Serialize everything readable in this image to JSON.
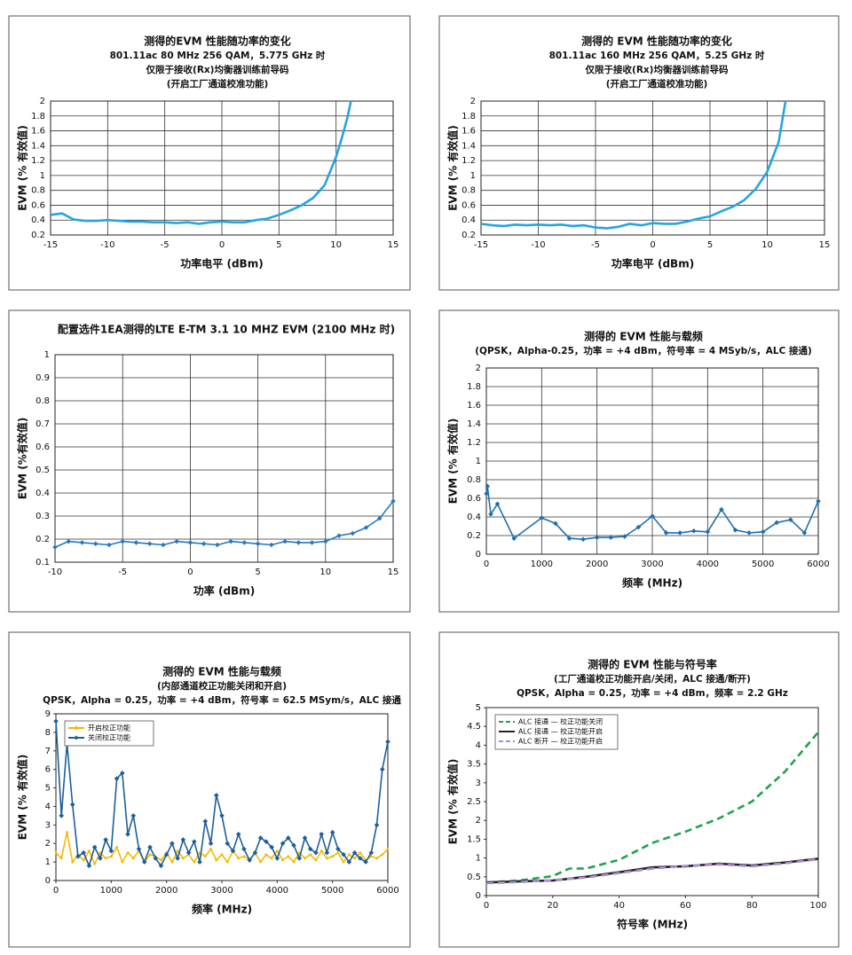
{
  "chart_data": [
    {
      "type": "line",
      "title": [
        "测得的EVM 性能随功率的变化",
        "801.11ac 80 MHz 256 QAM，5.775 GHz 时",
        "仅限于接收(Rx)均衡器训练前导码",
        "(开启工厂通道校准功能)"
      ],
      "xlabel": "功率电平 (dBm)",
      "ylabel": "EVM (% 有效值)",
      "xlim": [
        -15,
        15
      ],
      "ylim": [
        0.2,
        2
      ],
      "xticks": [
        -15,
        -10,
        -5,
        0,
        5,
        10,
        15
      ],
      "yticks": [
        0.2,
        0.4,
        0.6,
        0.8,
        1,
        1.2,
        1.4,
        1.6,
        1.8,
        2
      ],
      "grid": true,
      "series": [
        {
          "color": "#27a4e0",
          "x": [
            -15,
            -14,
            -13,
            -12,
            -11,
            -10,
            -9,
            -8,
            -7,
            -6,
            -5,
            -4,
            -3,
            -2,
            -1,
            0,
            1,
            2,
            3,
            4,
            5,
            6,
            7,
            8,
            9,
            10,
            10.5,
            11,
            11.3
          ],
          "values": [
            0.47,
            0.49,
            0.41,
            0.39,
            0.39,
            0.4,
            0.39,
            0.38,
            0.38,
            0.37,
            0.37,
            0.36,
            0.37,
            0.35,
            0.37,
            0.38,
            0.37,
            0.37,
            0.4,
            0.42,
            0.47,
            0.53,
            0.6,
            0.7,
            0.87,
            1.25,
            1.5,
            1.78,
            2
          ]
        }
      ]
    },
    {
      "type": "line",
      "title": [
        "测得的 EVM 性能随功率的变化",
        "801.11ac 160 MHz 256 QAM，5.25 GHz 时",
        "仅限于接收(Rx)均衡器训练前导码",
        "(开启工厂通道校准功能)"
      ],
      "xlabel": "功率电平 (dBm)",
      "ylabel": "EVM (% 有效值)",
      "xlim": [
        -15,
        15
      ],
      "ylim": [
        0.2,
        2
      ],
      "xticks": [
        -15,
        -10,
        -5,
        0,
        5,
        10,
        15
      ],
      "yticks": [
        0.2,
        0.4,
        0.6,
        0.8,
        1,
        1.2,
        1.4,
        1.6,
        1.8,
        2
      ],
      "grid": true,
      "series": [
        {
          "color": "#27a4e0",
          "x": [
            -15,
            -14,
            -13,
            -12,
            -11,
            -10,
            -9,
            -8,
            -7,
            -6,
            -5,
            -4,
            -3,
            -2,
            -1,
            0,
            1,
            2,
            3,
            4,
            5,
            6,
            7,
            8,
            9,
            10,
            11,
            11.6
          ],
          "values": [
            0.35,
            0.33,
            0.32,
            0.34,
            0.33,
            0.34,
            0.33,
            0.34,
            0.32,
            0.33,
            0.3,
            0.29,
            0.31,
            0.35,
            0.33,
            0.36,
            0.35,
            0.35,
            0.38,
            0.42,
            0.45,
            0.52,
            0.58,
            0.67,
            0.82,
            1.05,
            1.45,
            2
          ]
        }
      ]
    },
    {
      "type": "line",
      "title": [
        "配置选件1EA测得的LTE E-TM 3.1 10 MHZ EVM (2100 MHz 时)"
      ],
      "xlabel": "功率 (dBm)",
      "ylabel": "EVM (%有效值)",
      "xlim": [
        -10,
        15
      ],
      "ylim": [
        0.1,
        1
      ],
      "xticks": [
        -10,
        -5,
        0,
        5,
        10,
        15
      ],
      "yticks": [
        0.1,
        0.2,
        0.3,
        0.4,
        0.5,
        0.6,
        0.7,
        0.8,
        0.9,
        1
      ],
      "grid": true,
      "series": [
        {
          "color": "#2a78bd",
          "marker": "diamond",
          "x": [
            -10,
            -9,
            -8,
            -7,
            -6,
            -5,
            -4,
            -3,
            -2,
            -1,
            0,
            1,
            2,
            3,
            4,
            5,
            6,
            7,
            8,
            9,
            10,
            11,
            12,
            13,
            14,
            15
          ],
          "values": [
            0.165,
            0.19,
            0.185,
            0.18,
            0.175,
            0.19,
            0.185,
            0.18,
            0.175,
            0.19,
            0.185,
            0.18,
            0.175,
            0.19,
            0.185,
            0.18,
            0.175,
            0.19,
            0.185,
            0.185,
            0.19,
            0.215,
            0.225,
            0.25,
            0.29,
            0.365
          ]
        }
      ]
    },
    {
      "type": "line",
      "title": [
        "测得的 EVM 性能与载频",
        "(QPSK，Alpha-0.25，功率 = +4 dBm，符号率 = 4 MSyb/s，ALC 接通)"
      ],
      "xlabel": "频率 (MHz)",
      "ylabel": "EVM (% 有效值)",
      "xlim": [
        0,
        6000
      ],
      "ylim": [
        0,
        2
      ],
      "xticks": [
        0,
        1000,
        2000,
        3000,
        4000,
        5000,
        6000
      ],
      "yticks": [
        0,
        0.2,
        0.4,
        0.6,
        0.8,
        1,
        1.2,
        1.4,
        1.6,
        1.8,
        2
      ],
      "grid": true,
      "series": [
        {
          "color": "#1f6fae",
          "marker": "diamond",
          "x": [
            0,
            20,
            80,
            200,
            500,
            1000,
            1250,
            1500,
            1750,
            2000,
            2250,
            2500,
            2750,
            3000,
            3250,
            3500,
            3750,
            4000,
            4250,
            4500,
            4750,
            5000,
            5250,
            5500,
            5750,
            6000
          ],
          "values": [
            0.65,
            0.73,
            0.43,
            0.54,
            0.17,
            0.39,
            0.33,
            0.17,
            0.16,
            0.18,
            0.18,
            0.19,
            0.29,
            0.41,
            0.23,
            0.23,
            0.25,
            0.24,
            0.48,
            0.26,
            0.23,
            0.24,
            0.34,
            0.37,
            0.23,
            0.57
          ]
        }
      ]
    },
    {
      "type": "line",
      "title": [
        "测得的 EVM 性能与载频",
        "(内部通道校正功能关闭和开启)",
        "QPSK，Alpha = 0.25，功率 = +4 dBm，符号率 = 62.5 MSym/s，ALC 接通"
      ],
      "xlabel": "频率 (MHz)",
      "ylabel": "EVM (% 有效值)",
      "xlim": [
        0,
        6000
      ],
      "ylim": [
        0,
        9
      ],
      "xticks": [
        0,
        1000,
        2000,
        3000,
        4000,
        5000,
        6000
      ],
      "yticks": [
        0,
        1,
        2,
        3,
        4,
        5,
        6,
        7,
        8,
        9
      ],
      "grid": false,
      "legend": "upper left",
      "series": [
        {
          "name": "开启校正功能",
          "color": "#f5b800",
          "marker": "small",
          "x": [
            0,
            100,
            200,
            300,
            400,
            500,
            600,
            700,
            800,
            900,
            1000,
            1100,
            1200,
            1300,
            1400,
            1500,
            1600,
            1700,
            1800,
            1900,
            2000,
            2100,
            2200,
            2300,
            2400,
            2500,
            2600,
            2700,
            2800,
            2900,
            3000,
            3100,
            3200,
            3300,
            3400,
            3500,
            3600,
            3700,
            3800,
            3900,
            4000,
            4100,
            4200,
            4300,
            4400,
            4500,
            4600,
            4700,
            4800,
            4900,
            5000,
            5100,
            5200,
            5300,
            5400,
            5500,
            5600,
            5700,
            5800,
            5900,
            6000
          ],
          "values": [
            1.5,
            1.2,
            2.6,
            1.0,
            1.4,
            1.1,
            1.6,
            0.9,
            1.5,
            1.2,
            1.3,
            1.8,
            1.0,
            1.5,
            1.2,
            1.6,
            1.0,
            1.4,
            1.3,
            1.1,
            1.5,
            1.0,
            1.6,
            1.2,
            1.4,
            1.0,
            1.5,
            1.3,
            1.7,
            1.1,
            1.4,
            1.0,
            1.6,
            1.2,
            1.3,
            1.1,
            1.5,
            1.0,
            1.4,
            1.2,
            1.6,
            1.1,
            1.3,
            1.0,
            1.5,
            1.2,
            1.4,
            1.1,
            1.6,
            1.2,
            1.3,
            1.5,
            1.0,
            1.4,
            1.2,
            1.5,
            1.1,
            1.3,
            1.2,
            1.4,
            1.7
          ]
        },
        {
          "name": "关闭校正功能",
          "color": "#1c5f9a",
          "marker": "diamond",
          "x": [
            0,
            100,
            200,
            300,
            400,
            500,
            600,
            700,
            800,
            900,
            1000,
            1100,
            1200,
            1300,
            1400,
            1500,
            1600,
            1700,
            1800,
            1900,
            2000,
            2100,
            2200,
            2300,
            2400,
            2500,
            2600,
            2700,
            2800,
            2900,
            3000,
            3100,
            3200,
            3300,
            3400,
            3500,
            3600,
            3700,
            3800,
            3900,
            4000,
            4100,
            4200,
            4300,
            4400,
            4500,
            4600,
            4700,
            4800,
            4900,
            5000,
            5100,
            5200,
            5300,
            5400,
            5500,
            5600,
            5700,
            5800,
            5900,
            6000
          ],
          "values": [
            8.6,
            3.5,
            7.4,
            4.1,
            1.3,
            1.5,
            0.8,
            1.8,
            1.2,
            2.2,
            1.6,
            5.5,
            5.8,
            2.5,
            3.5,
            1.7,
            1.0,
            1.8,
            1.2,
            0.8,
            1.4,
            2.0,
            1.2,
            2.2,
            1.5,
            2.1,
            1.0,
            3.2,
            2.0,
            4.6,
            3.5,
            2.0,
            1.6,
            2.5,
            1.7,
            1.1,
            1.5,
            2.3,
            2.1,
            1.8,
            1.2,
            2.0,
            2.3,
            1.9,
            1.2,
            2.3,
            1.7,
            1.5,
            2.5,
            1.5,
            2.6,
            1.7,
            1.4,
            1.0,
            1.5,
            1.2,
            1.0,
            1.5,
            3.0,
            6.0,
            7.5
          ]
        }
      ]
    },
    {
      "type": "line",
      "title": [
        "测得的 EVM 性能与符号率",
        "(工厂通道校正功能开启/关闭，ALC 接通/断开)",
        "QPSK，Alpha = 0.25，功率 = +4 dBm，频率 = 2.2 GHz"
      ],
      "xlabel": "符号率 (MHz)",
      "ylabel": "EVM (% 有效值)",
      "xlim": [
        0,
        100
      ],
      "ylim": [
        0,
        5
      ],
      "xticks": [
        0,
        20,
        40,
        60,
        80,
        100
      ],
      "yticks": [
        0,
        0.5,
        1,
        1.5,
        2,
        2.5,
        3,
        3.5,
        4,
        4.5,
        5
      ],
      "grid": false,
      "legend": "upper left",
      "series": [
        {
          "name": "ALC 接通 — 校正功能关闭",
          "color": "#1fa34a",
          "dash": true,
          "x": [
            0,
            10,
            20,
            25,
            30,
            40,
            50,
            60,
            70,
            80,
            90,
            100
          ],
          "values": [
            0.35,
            0.4,
            0.52,
            0.72,
            0.72,
            0.95,
            1.4,
            1.7,
            2.05,
            2.5,
            3.3,
            4.35
          ]
        },
        {
          "name": "ALC 接通 — 校正功能开启",
          "color": "#222222",
          "x": [
            0,
            10,
            20,
            30,
            40,
            50,
            60,
            70,
            80,
            90,
            100
          ],
          "values": [
            0.35,
            0.38,
            0.4,
            0.5,
            0.62,
            0.75,
            0.78,
            0.85,
            0.8,
            0.88,
            0.98
          ]
        },
        {
          "name": "ALC 断开 — 校正功能开启",
          "color": "#a98bd0",
          "dash": true,
          "x": [
            0,
            10,
            20,
            30,
            40,
            50,
            60,
            70,
            80,
            90,
            100
          ],
          "values": [
            0.33,
            0.36,
            0.41,
            0.48,
            0.6,
            0.72,
            0.79,
            0.83,
            0.78,
            0.86,
            0.97
          ]
        }
      ]
    }
  ]
}
